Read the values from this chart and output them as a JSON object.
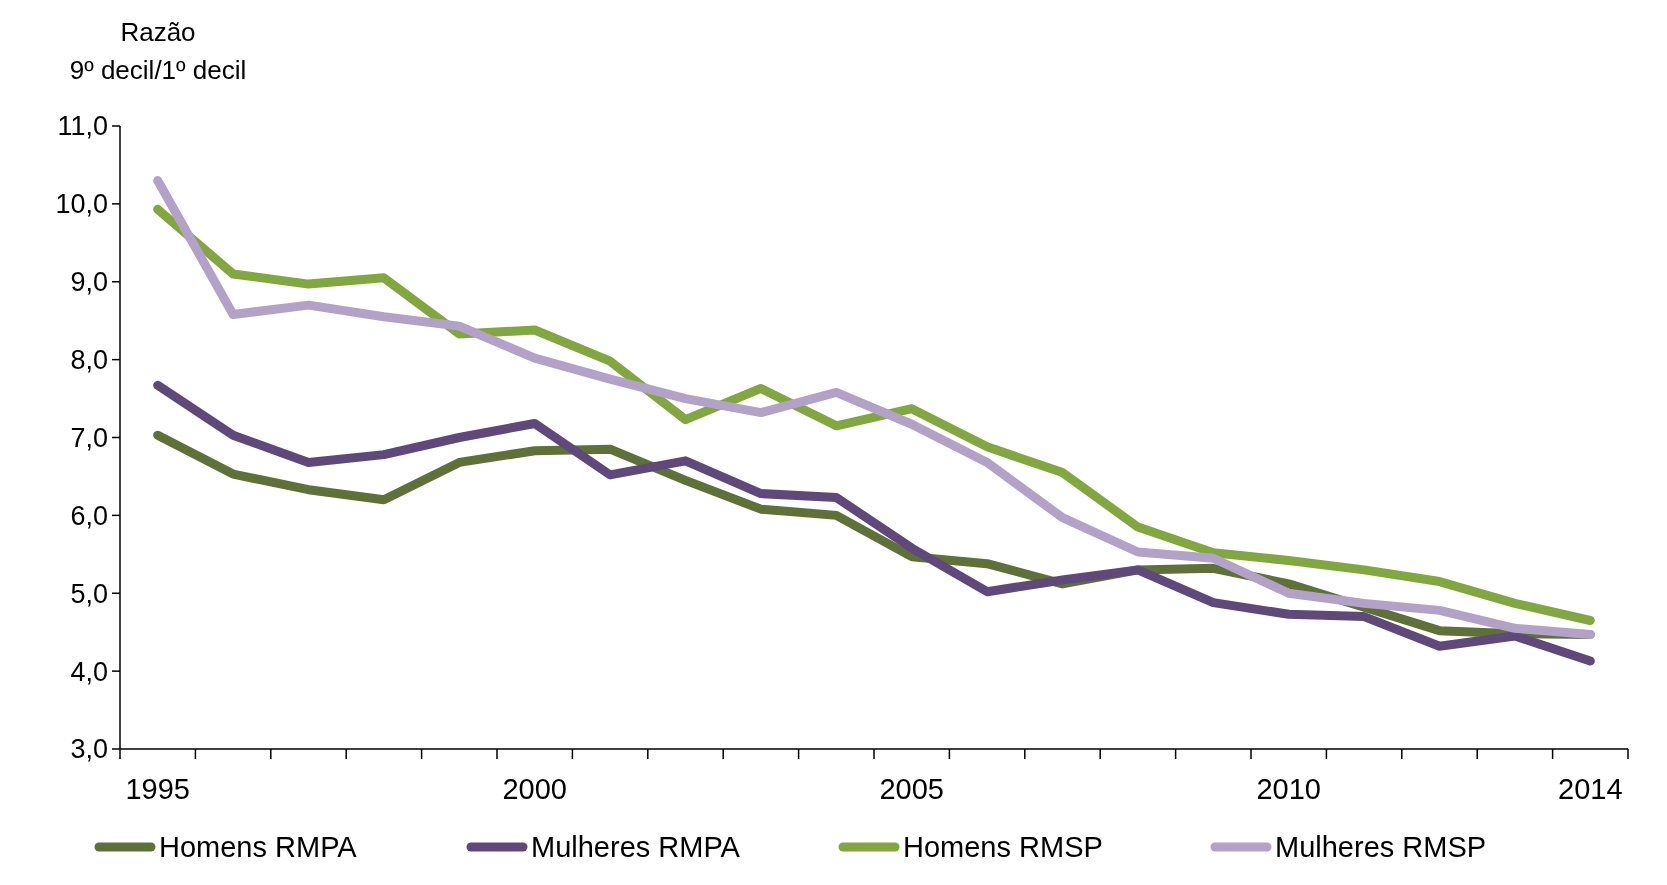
{
  "chart_data": {
    "type": "line",
    "ylabel": "Razão\n9º decil/1º decil",
    "categories": [
      "1995",
      null,
      null,
      null,
      null,
      "2000",
      null,
      null,
      null,
      null,
      "2005",
      null,
      null,
      null,
      null,
      "2010",
      null,
      null,
      null,
      "2014"
    ],
    "ylim": [
      3,
      11
    ],
    "yticks": [
      {
        "value": 3,
        "label": "3,0"
      },
      {
        "value": 4,
        "label": "4,0"
      },
      {
        "value": 5,
        "label": "5,0"
      },
      {
        "value": 6,
        "label": "6,0"
      },
      {
        "value": 7,
        "label": "7,0"
      },
      {
        "value": 8,
        "label": "8,0"
      },
      {
        "value": 9,
        "label": "9,0"
      },
      {
        "value": 10,
        "label": "10,0"
      },
      {
        "value": 11,
        "label": "11,0"
      }
    ],
    "grid": false,
    "legend": "bottom",
    "marker": "none",
    "line_style": "solid",
    "series": [
      {
        "name": "Homens RMPA",
        "color": "#5f7039",
        "values": [
          7.03,
          6.53,
          6.33,
          6.2,
          6.68,
          6.83,
          6.85,
          6.45,
          6.08,
          6.0,
          5.47,
          5.38,
          5.12,
          5.3,
          5.32,
          5.12,
          4.82,
          4.52,
          4.48,
          4.47
        ]
      },
      {
        "name": "Mulheres RMPA",
        "color": "#5f497a",
        "values": [
          7.67,
          7.03,
          6.68,
          6.78,
          7.0,
          7.18,
          6.52,
          6.7,
          6.28,
          6.23,
          5.58,
          5.02,
          5.17,
          5.3,
          4.88,
          4.73,
          4.7,
          4.32,
          4.45,
          4.13
        ]
      },
      {
        "name": "Homens RMSP",
        "color": "#82a640",
        "values": [
          9.93,
          9.1,
          8.97,
          9.05,
          8.33,
          8.38,
          7.98,
          7.23,
          7.63,
          7.15,
          7.37,
          6.88,
          6.55,
          5.85,
          5.52,
          5.42,
          5.3,
          5.15,
          4.87,
          4.65
        ]
      },
      {
        "name": "Mulheres RMSP",
        "color": "#b3a2c7",
        "values": [
          10.3,
          8.58,
          8.7,
          8.55,
          8.43,
          8.02,
          7.75,
          7.5,
          7.32,
          7.58,
          7.17,
          6.68,
          5.97,
          5.53,
          5.45,
          5.0,
          4.87,
          4.78,
          4.55,
          4.47
        ]
      }
    ]
  }
}
